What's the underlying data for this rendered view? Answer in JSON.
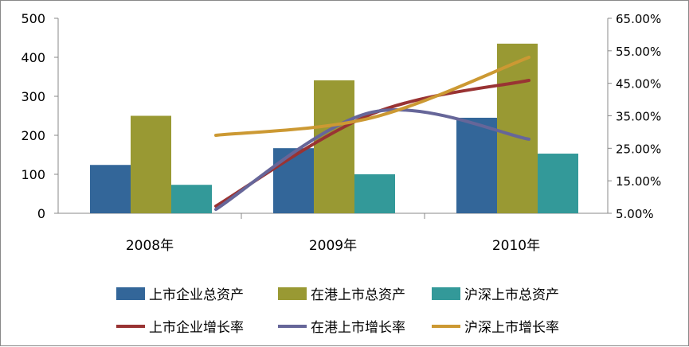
{
  "chart_data": {
    "type": "bar+line",
    "categories": [
      "2008年",
      "2009年",
      "2010年"
    ],
    "y_left": {
      "range": [
        0,
        500
      ],
      "ticks": [
        "0",
        "100",
        "200",
        "300",
        "400",
        "500"
      ]
    },
    "y_right": {
      "range": [
        5,
        65
      ],
      "ticks": [
        "5.00%",
        "15.00%",
        "25.00%",
        "35.00%",
        "45.00%",
        "55.00%",
        "65.00%"
      ]
    },
    "bar_series": [
      {
        "name": "上市企业总资产",
        "color": "#336699",
        "values": [
          124,
          167,
          245
        ]
      },
      {
        "name": "在港上市总资产",
        "color": "#999933",
        "values": [
          250,
          341,
          435
        ]
      },
      {
        "name": "沪深上市总资产",
        "color": "#339999",
        "values": [
          73,
          100,
          153
        ]
      }
    ],
    "line_series": [
      {
        "name": "上市企业增长率",
        "color": "#993333",
        "values": [
          7.2,
          35.6,
          45.9
        ]
      },
      {
        "name": "在港上市增长率",
        "color": "#666699",
        "values": [
          6.2,
          36.1,
          27.8
        ]
      },
      {
        "name": "沪深上市增长率",
        "color": "#CC9933",
        "values": [
          29.0,
          34.4,
          53.0
        ]
      }
    ],
    "grid": false,
    "legend": "bottom"
  }
}
